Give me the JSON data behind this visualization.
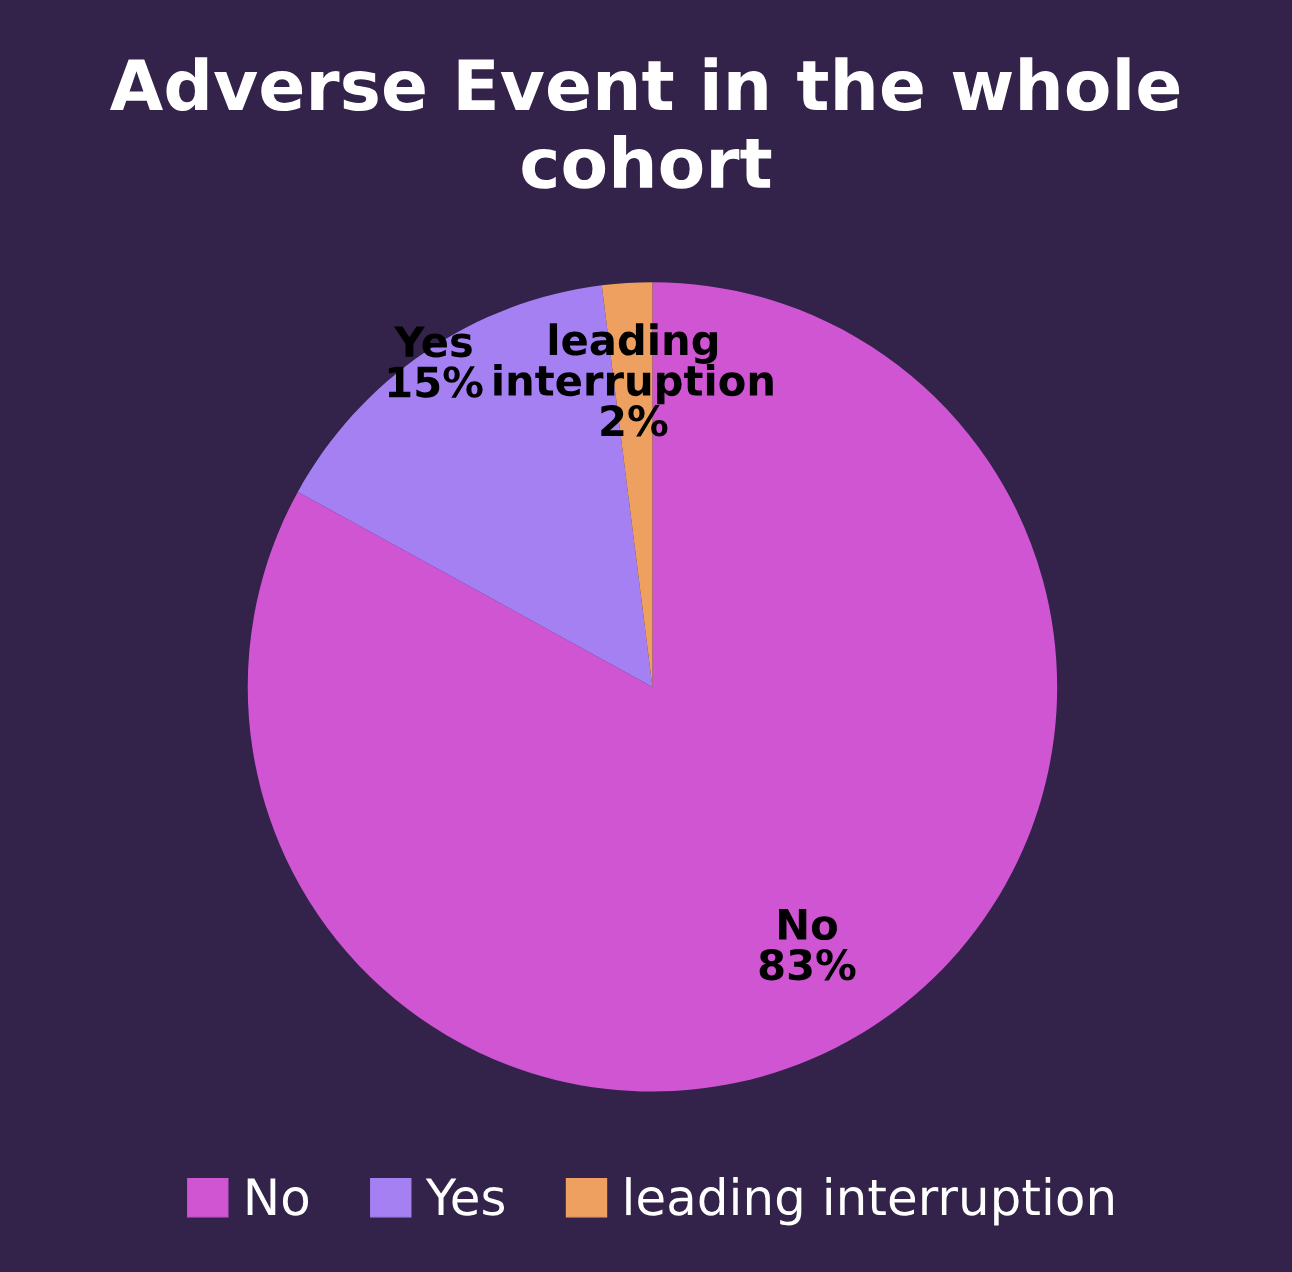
{
  "chart_data": {
    "type": "pie",
    "title": "Adverse Event in the whole cohort",
    "categories": [
      "No",
      "Yes",
      "leading interruption"
    ],
    "values": [
      83,
      15,
      2
    ],
    "value_labels": [
      "83%",
      "15%",
      "2%"
    ],
    "colors": [
      "#cf55d2",
      "#a580f2",
      "#eea060"
    ],
    "legend": "bottom"
  }
}
